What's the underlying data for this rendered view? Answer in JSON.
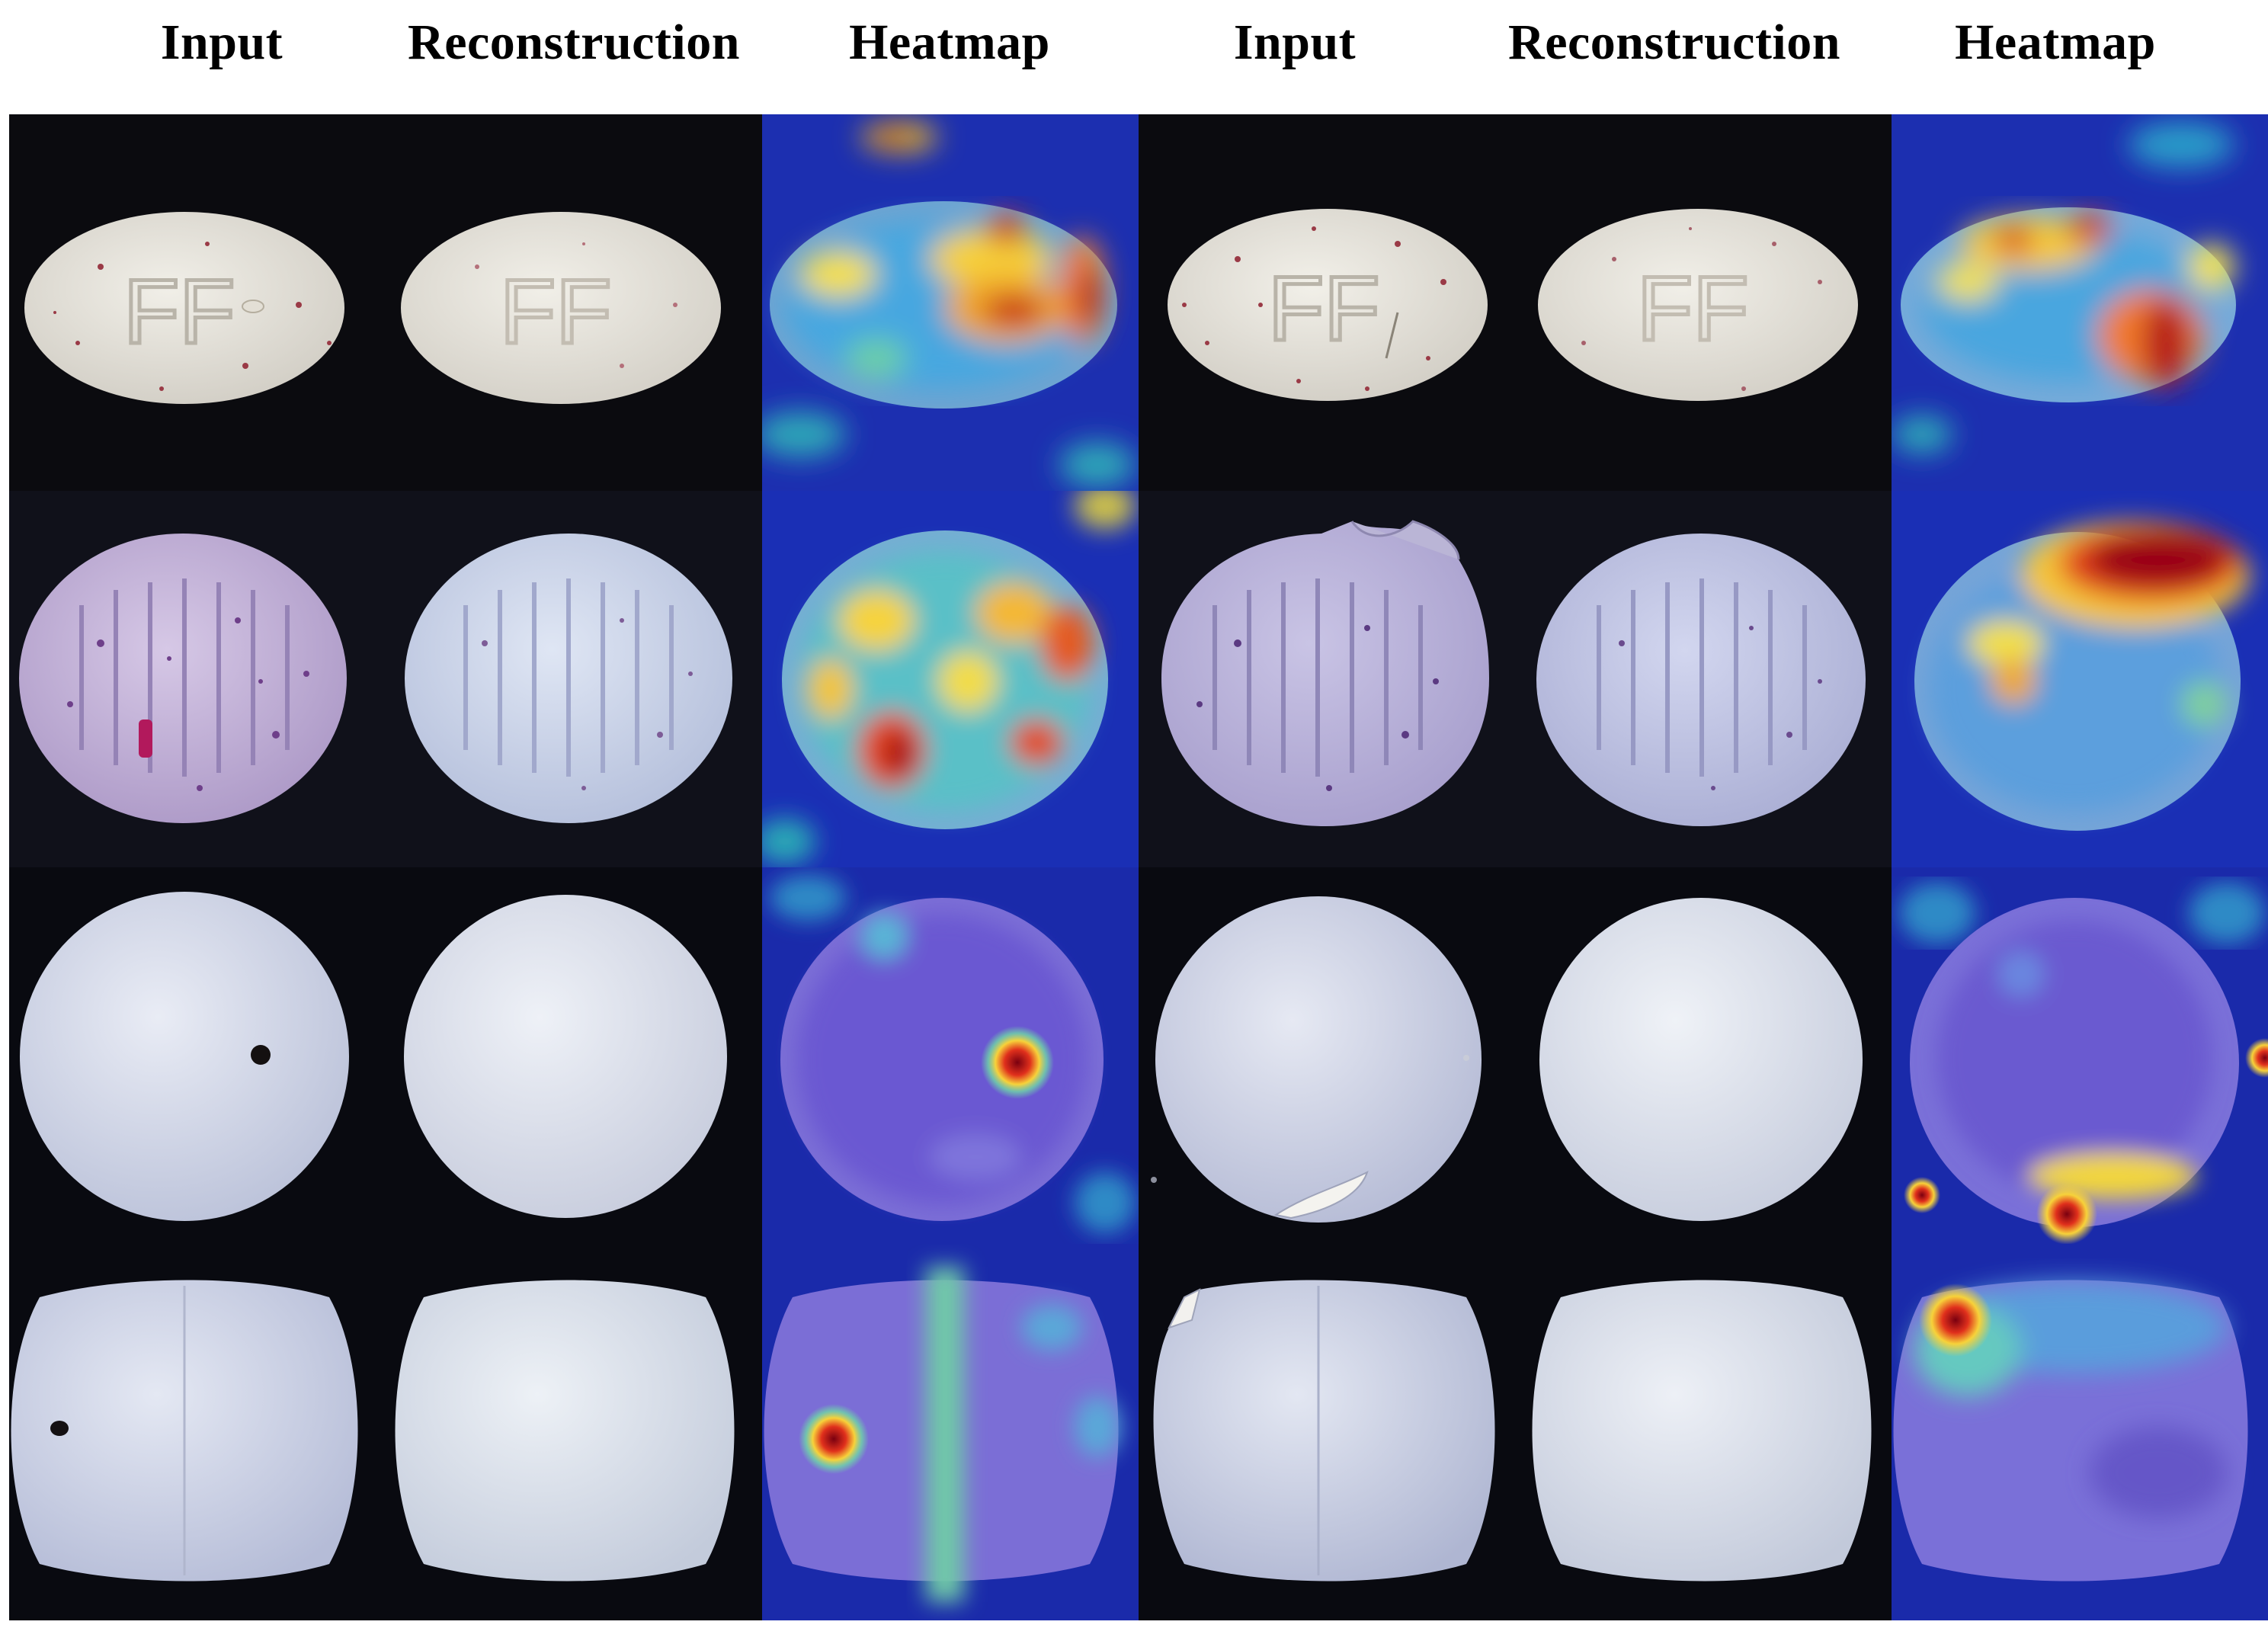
{
  "headers": {
    "left": {
      "input": "Input",
      "reconstruction": "Reconstruction",
      "heatmap": "Heatmap"
    },
    "right": {
      "input": "Input",
      "reconstruction": "Reconstruction",
      "heatmap": "Heatmap"
    }
  },
  "colors": {
    "background": "#06070b",
    "tablet_white": "#e9e7e0",
    "tablet_purple": "#b4a7d6",
    "tablet_blue_white": "#d5dcef",
    "heatmap_low": "#1a23b8",
    "heatmap_mid": "#38c9c0",
    "heatmap_high": "#ffd52b",
    "heatmap_peak": "#b3001a"
  },
  "rows": [
    {
      "tablet_shape": "ellipse",
      "tablet_marking": "FF",
      "left_defect": "speck",
      "right_defect": "scratch"
    },
    {
      "tablet_shape": "round-scored",
      "tablet_marking": "",
      "left_defect": "contamination",
      "right_defect": "chip"
    },
    {
      "tablet_shape": "circle",
      "tablet_marking": "",
      "left_defect": "black-spot",
      "right_defect": "crack"
    },
    {
      "tablet_shape": "capsule",
      "tablet_marking": "",
      "left_defect": "black-spot",
      "right_defect": "chip"
    }
  ]
}
